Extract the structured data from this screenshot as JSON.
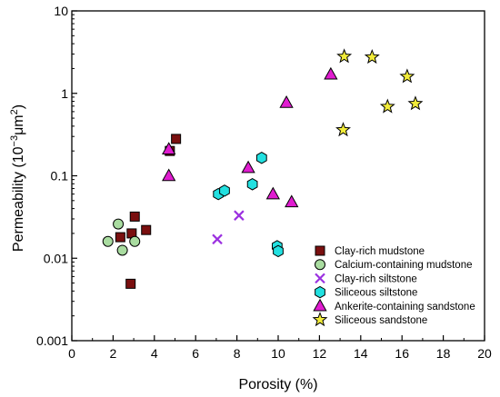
{
  "chart_data": {
    "type": "scatter",
    "xlabel": "Porosity (%)",
    "ylabel_main": "Permeability (10",
    "ylabel_sup": "−3",
    "ylabel_unit": "μm",
    "ylabel_sup2": "2",
    "ylabel_end": ")",
    "xlim": [
      0,
      20
    ],
    "ylim": [
      0.001,
      10
    ],
    "yscale": "log",
    "x_ticks": [
      0,
      2,
      4,
      6,
      8,
      10,
      12,
      14,
      16,
      18,
      20
    ],
    "x_tick_labels": [
      "0",
      "2",
      "4",
      "6",
      "8",
      "10",
      "12",
      "14",
      "16",
      "18",
      "20"
    ],
    "y_ticks": [
      0.001,
      0.01,
      0.1,
      1,
      10
    ],
    "y_tick_labels": [
      "0.001",
      "0.01",
      "0.1",
      "1",
      "10"
    ],
    "grid": false,
    "legend_position": "bottom-right",
    "series": [
      {
        "name": "Clay-rich mudstone",
        "marker": "square",
        "color": "#7a0f0f",
        "points": [
          [
            2.35,
            0.018
          ],
          [
            2.9,
            0.02
          ],
          [
            3.05,
            0.032
          ],
          [
            3.6,
            0.022
          ],
          [
            2.85,
            0.0049
          ],
          [
            4.75,
            0.2
          ],
          [
            5.05,
            0.28
          ]
        ]
      },
      {
        "name": "Calcium-containing mudstone",
        "marker": "circle",
        "color": "#a9dca0",
        "points": [
          [
            1.75,
            0.016
          ],
          [
            2.25,
            0.026
          ],
          [
            2.45,
            0.0125
          ],
          [
            3.05,
            0.016
          ]
        ]
      },
      {
        "name": "Clay-rich siltstone",
        "marker": "x",
        "color": "#9b30e0",
        "points": [
          [
            7.05,
            0.017
          ],
          [
            8.1,
            0.033
          ]
        ]
      },
      {
        "name": "Siliceous siltstone",
        "marker": "hexagon",
        "color": "#22e0e0",
        "points": [
          [
            7.1,
            0.06
          ],
          [
            7.4,
            0.066
          ],
          [
            8.75,
            0.079
          ],
          [
            9.2,
            0.165
          ],
          [
            9.95,
            0.014
          ],
          [
            10.0,
            0.0122
          ]
        ]
      },
      {
        "name": "Ankerite-containing sandstone",
        "marker": "triangle",
        "color": "#e01cd0",
        "points": [
          [
            4.7,
            0.1
          ],
          [
            4.7,
            0.21
          ],
          [
            8.55,
            0.125
          ],
          [
            9.75,
            0.06
          ],
          [
            10.4,
            0.77
          ],
          [
            10.65,
            0.048
          ],
          [
            12.55,
            1.7
          ]
        ]
      },
      {
        "name": "Siliceous sandstone",
        "marker": "star",
        "color": "#f2ec3a",
        "points": [
          [
            13.2,
            2.8
          ],
          [
            13.15,
            0.36
          ],
          [
            14.55,
            2.75
          ],
          [
            15.3,
            0.69
          ],
          [
            16.25,
            1.6
          ],
          [
            16.65,
            0.75
          ]
        ]
      }
    ]
  }
}
